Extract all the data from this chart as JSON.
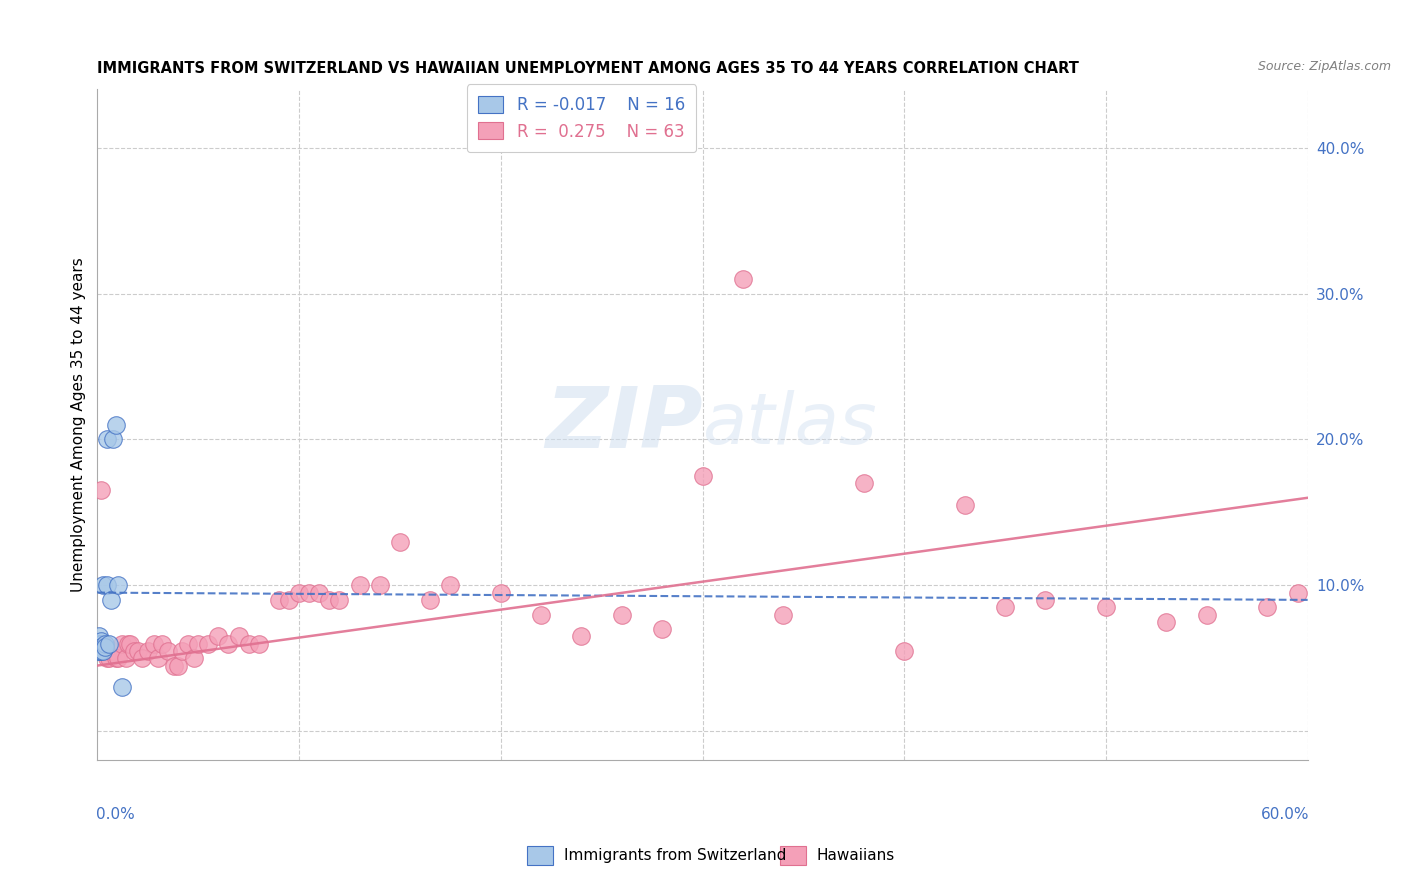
{
  "title": "IMMIGRANTS FROM SWITZERLAND VS HAWAIIAN UNEMPLOYMENT AMONG AGES 35 TO 44 YEARS CORRELATION CHART",
  "source": "Source: ZipAtlas.com",
  "ylabel": "Unemployment Among Ages 35 to 44 years",
  "xlim": [
    0.0,
    0.6
  ],
  "ylim": [
    -0.02,
    0.44
  ],
  "color_blue": "#a8c8e8",
  "color_pink": "#f4a0b8",
  "line_blue": "#4472C4",
  "line_pink": "#E07090",
  "watermark_zip": "ZIP",
  "watermark_atlas": "atlas",
  "swiss_x": [
    0.001,
    0.001,
    0.001,
    0.001,
    0.001,
    0.002,
    0.002,
    0.002,
    0.002,
    0.003,
    0.003,
    0.004,
    0.004,
    0.005,
    0.005,
    0.006,
    0.007,
    0.008,
    0.009,
    0.01,
    0.012
  ],
  "swiss_y": [
    0.055,
    0.06,
    0.065,
    0.055,
    0.06,
    0.06,
    0.062,
    0.058,
    0.055,
    0.055,
    0.1,
    0.06,
    0.058,
    0.1,
    0.2,
    0.06,
    0.09,
    0.2,
    0.21,
    0.1,
    0.03
  ],
  "hawaii_x": [
    0.002,
    0.003,
    0.004,
    0.005,
    0.006,
    0.007,
    0.008,
    0.009,
    0.01,
    0.012,
    0.014,
    0.015,
    0.016,
    0.018,
    0.02,
    0.022,
    0.025,
    0.028,
    0.03,
    0.032,
    0.035,
    0.038,
    0.04,
    0.042,
    0.045,
    0.048,
    0.05,
    0.055,
    0.06,
    0.065,
    0.07,
    0.075,
    0.08,
    0.09,
    0.095,
    0.1,
    0.105,
    0.11,
    0.115,
    0.12,
    0.13,
    0.14,
    0.15,
    0.165,
    0.175,
    0.2,
    0.22,
    0.24,
    0.26,
    0.28,
    0.3,
    0.32,
    0.34,
    0.38,
    0.4,
    0.43,
    0.45,
    0.47,
    0.5,
    0.53,
    0.55,
    0.58,
    0.595
  ],
  "hawaii_y": [
    0.165,
    0.055,
    0.055,
    0.05,
    0.05,
    0.055,
    0.055,
    0.05,
    0.05,
    0.06,
    0.05,
    0.06,
    0.06,
    0.055,
    0.055,
    0.05,
    0.055,
    0.06,
    0.05,
    0.06,
    0.055,
    0.045,
    0.045,
    0.055,
    0.06,
    0.05,
    0.06,
    0.06,
    0.065,
    0.06,
    0.065,
    0.06,
    0.06,
    0.09,
    0.09,
    0.095,
    0.095,
    0.095,
    0.09,
    0.09,
    0.1,
    0.1,
    0.13,
    0.09,
    0.1,
    0.095,
    0.08,
    0.065,
    0.08,
    0.07,
    0.175,
    0.31,
    0.08,
    0.17,
    0.055,
    0.155,
    0.085,
    0.09,
    0.085,
    0.075,
    0.08,
    0.085,
    0.095
  ],
  "blue_line_x": [
    0.0,
    0.6
  ],
  "blue_line_y": [
    0.095,
    0.09
  ],
  "pink_line_x": [
    0.0,
    0.6
  ],
  "pink_line_y": [
    0.045,
    0.16
  ]
}
